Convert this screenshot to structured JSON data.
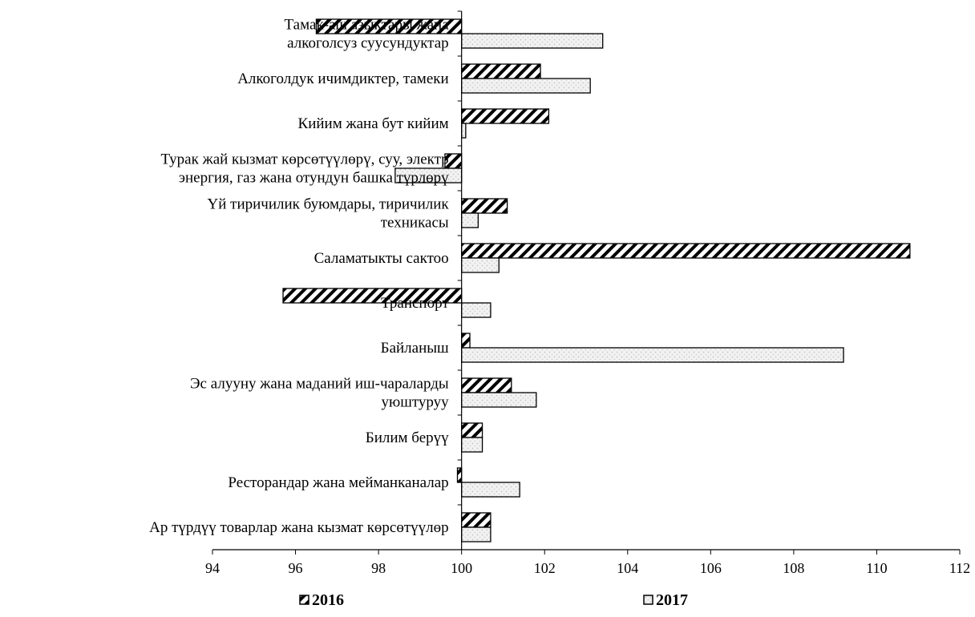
{
  "chart_data": {
    "type": "bar",
    "orientation": "horizontal",
    "baseline": 100,
    "categories": [
      [
        "Тамак-аш азыктары жана",
        "алкоголсуз суусундуктар"
      ],
      [
        "Алкоголдук ичимдиктер, тамеки"
      ],
      [
        "Кийим жана бут кийим"
      ],
      [
        "Турак жай кызмат көрсөтүүлөрү, суу, электр",
        "энергия, газ жана отундун башка түрлөрү"
      ],
      [
        "Үй тиричилик буюмдары, тиричилик",
        "техникасы"
      ],
      [
        "Саламатыкты сактоо"
      ],
      [
        "Транспорт"
      ],
      [
        "Байланыш"
      ],
      [
        "Эс алууну жана маданий иш-чараларды",
        "уюштуруу"
      ],
      [
        "Билим берүү"
      ],
      [
        "Ресторандар жана мейманканалар"
      ],
      [
        "Ар түрдүү товарлар жана кызмат көрсөтүүлөр"
      ]
    ],
    "series": [
      {
        "name": "2016",
        "pattern": "hatch",
        "values": [
          96.5,
          101.9,
          102.1,
          99.6,
          101.1,
          110.8,
          95.7,
          100.2,
          101.2,
          100.5,
          99.9,
          100.7
        ]
      },
      {
        "name": "2017",
        "pattern": "dots",
        "values": [
          103.4,
          103.1,
          100.1,
          98.4,
          100.4,
          100.9,
          100.7,
          109.2,
          101.8,
          100.5,
          101.4,
          100.7
        ]
      }
    ],
    "xlim": [
      94,
      112
    ],
    "xticks": [
      "94",
      "96",
      "98",
      "100",
      "102",
      "104",
      "106",
      "108",
      "110",
      "112"
    ],
    "legend_position": "bottom",
    "grid": false,
    "colors": {
      "bar_fill_2016": "#ffffff",
      "hatch": "#000000",
      "bar_fill_2017": "#f2f2f2",
      "dots": "#c8c8c8",
      "axis": "#000000"
    }
  }
}
